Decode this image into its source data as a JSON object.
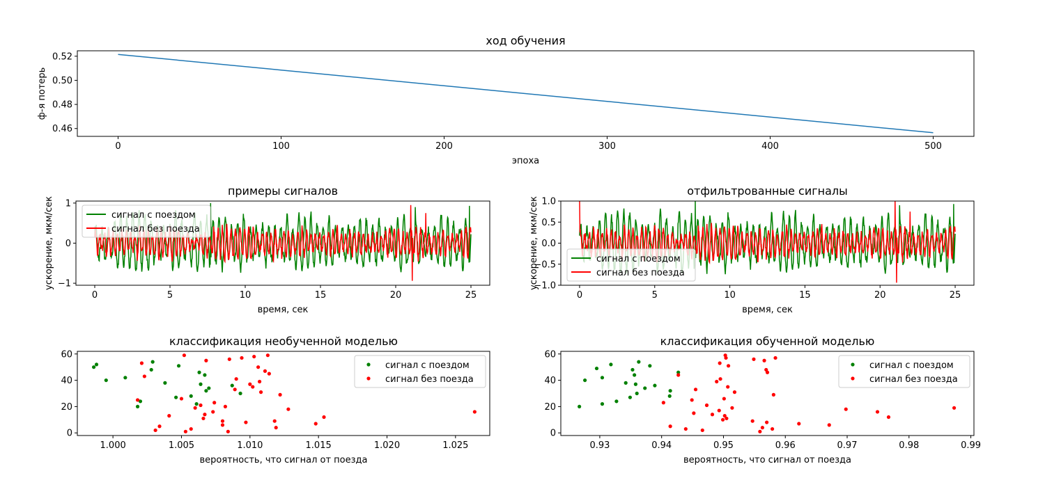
{
  "figure": {
    "background": "#ffffff"
  },
  "chart_data": [
    {
      "id": "training",
      "type": "line",
      "title": "ход обучения",
      "xlabel": "эпоха",
      "ylabel": "ф-я потерь",
      "xlim": [
        -25,
        525
      ],
      "ylim": [
        0.4535,
        0.5245
      ],
      "xticks": [
        0,
        100,
        200,
        300,
        400,
        500
      ],
      "xtick_labels": [
        "0",
        "100",
        "200",
        "300",
        "400",
        "500"
      ],
      "yticks": [
        0.46,
        0.48,
        0.5,
        0.52
      ],
      "ytick_labels": [
        "0.46",
        "0.48",
        "0.50",
        "0.52"
      ],
      "grid": false,
      "series": [
        {
          "color": "#1f77b4",
          "x": [
            0,
            100,
            200,
            300,
            400,
            500
          ],
          "y": [
            0.5215,
            0.5085,
            0.4955,
            0.4825,
            0.4695,
            0.4565
          ]
        }
      ]
    },
    {
      "id": "examples",
      "type": "line",
      "title": "примеры сигналов",
      "xlabel": "время, сек",
      "ylabel": "ускорение, мкм/сек",
      "xlim": [
        -1.25,
        26.25
      ],
      "ylim": [
        -1.05,
        1.05
      ],
      "xticks": [
        0,
        5,
        10,
        15,
        20,
        25
      ],
      "xtick_labels": [
        "0",
        "5",
        "10",
        "15",
        "20",
        "25"
      ],
      "yticks": [
        -1,
        0,
        1
      ],
      "ytick_labels": [
        "−1",
        "0",
        "1"
      ],
      "grid": false,
      "legend_position": "upper-left",
      "series": [
        {
          "name": "сигнал с поездом",
          "color": "#008000",
          "seed": 11,
          "amp": 0.55,
          "period": 0.42,
          "bursts": [
            [
              7.7,
              1.0
            ],
            [
              21.3,
              0.9
            ],
            [
              24.9,
              0.93
            ]
          ]
        },
        {
          "name": "сигнал без поезда",
          "color": "#ff0000",
          "seed": 29,
          "amp": 0.3,
          "period": 0.3,
          "bursts": [
            [
              21.0,
              0.95
            ],
            [
              21.1,
              -0.94
            ],
            [
              22.0,
              0.75
            ]
          ]
        }
      ]
    },
    {
      "id": "filtered",
      "type": "line",
      "title": "отфильтрованные сигналы",
      "xlabel": "время, сек",
      "ylabel": "ускорение, мкм/сек",
      "xlim": [
        -1.25,
        26.25
      ],
      "ylim": [
        -1.0,
        1.0
      ],
      "xticks": [
        0,
        5,
        10,
        15,
        20,
        25
      ],
      "xtick_labels": [
        "0",
        "5",
        "10",
        "15",
        "20",
        "25"
      ],
      "yticks": [
        -1.0,
        -0.5,
        0.0,
        0.5,
        1.0
      ],
      "ytick_labels": [
        "−1.0",
        "−0.5",
        "0.0",
        "0.5",
        "1.0"
      ],
      "grid": false,
      "legend_position": "lower-left",
      "series": [
        {
          "name": "сигнал с поездом",
          "color": "#008000",
          "seed": 11,
          "amp": 0.55,
          "period": 0.42,
          "bursts": [
            [
              7.7,
              1.0
            ],
            [
              21.3,
              0.9
            ],
            [
              24.9,
              0.93
            ]
          ]
        },
        {
          "name": "сигнал без поезда",
          "color": "#ff0000",
          "seed": 29,
          "amp": 0.3,
          "period": 0.3,
          "bursts": [
            [
              0.0,
              1.0
            ],
            [
              21.0,
              1.0
            ],
            [
              21.1,
              -0.94
            ],
            [
              22.0,
              0.75
            ]
          ]
        }
      ]
    },
    {
      "id": "untrained",
      "type": "scatter",
      "title": "классификация необученной моделью",
      "xlabel": "вероятность, что сигнал от поезда",
      "ylabel": "",
      "xlim": [
        0.9974,
        1.0275
      ],
      "ylim": [
        -2,
        62
      ],
      "xticks": [
        1.0,
        1.005,
        1.01,
        1.015,
        1.02,
        1.025
      ],
      "xtick_labels": [
        "1.000",
        "1.005",
        "1.010",
        "1.015",
        "1.020",
        "1.025"
      ],
      "yticks": [
        0,
        20,
        40,
        60
      ],
      "ytick_labels": [
        "0",
        "20",
        "40",
        "60"
      ],
      "grid": false,
      "legend_position": "upper-right",
      "series": [
        {
          "name": "сигнал с поездом",
          "color": "#008000",
          "points": [
            [
              0.9986,
              50
            ],
            [
              0.9988,
              52
            ],
            [
              0.9995,
              40
            ],
            [
              1.0009,
              42
            ],
            [
              1.0018,
              20
            ],
            [
              1.002,
              24
            ],
            [
              1.0028,
              48
            ],
            [
              1.0029,
              54
            ],
            [
              1.0038,
              38
            ],
            [
              1.0046,
              27
            ],
            [
              1.0048,
              51
            ],
            [
              1.0057,
              28
            ],
            [
              1.0061,
              22
            ],
            [
              1.0063,
              46
            ],
            [
              1.0064,
              37
            ],
            [
              1.0067,
              44
            ],
            [
              1.0068,
              32
            ],
            [
              1.007,
              34
            ],
            [
              1.0087,
              36
            ],
            [
              1.0093,
              30
            ]
          ]
        },
        {
          "name": "сигнал без поезда",
          "color": "#ff0000",
          "points": [
            [
              1.0018,
              25
            ],
            [
              1.0021,
              53
            ],
            [
              1.0023,
              43
            ],
            [
              1.0031,
              2
            ],
            [
              1.0034,
              5
            ],
            [
              1.0041,
              13
            ],
            [
              1.005,
              26
            ],
            [
              1.0052,
              59
            ],
            [
              1.0053,
              1
            ],
            [
              1.0057,
              3
            ],
            [
              1.006,
              19
            ],
            [
              1.0064,
              21
            ],
            [
              1.0066,
              11
            ],
            [
              1.0067,
              14
            ],
            [
              1.0068,
              55
            ],
            [
              1.0073,
              16
            ],
            [
              1.0074,
              23
            ],
            [
              1.008,
              9
            ],
            [
              1.008,
              6
            ],
            [
              1.0082,
              20
            ],
            [
              1.0084,
              1
            ],
            [
              1.0085,
              56
            ],
            [
              1.0089,
              33
            ],
            [
              1.009,
              41
            ],
            [
              1.0094,
              57
            ],
            [
              1.0097,
              8
            ],
            [
              1.01,
              37
            ],
            [
              1.0102,
              35
            ],
            [
              1.0103,
              58
            ],
            [
              1.0106,
              50
            ],
            [
              1.0107,
              39
            ],
            [
              1.0108,
              31
            ],
            [
              1.0111,
              47
            ],
            [
              1.0113,
              59
            ],
            [
              1.0114,
              45
            ],
            [
              1.0118,
              9
            ],
            [
              1.0119,
              4
            ],
            [
              1.0122,
              29
            ],
            [
              1.0128,
              18
            ],
            [
              1.0148,
              7
            ],
            [
              1.0154,
              12
            ],
            [
              1.0264,
              16
            ]
          ]
        }
      ]
    },
    {
      "id": "trained",
      "type": "scatter",
      "title": "классификация обученной моделью",
      "xlabel": "вероятность, что сигнал от поезда",
      "ylabel": "",
      "xlim": [
        0.9237,
        0.9905
      ],
      "ylim": [
        -2,
        62
      ],
      "xticks": [
        0.93,
        0.94,
        0.95,
        0.96,
        0.97,
        0.98,
        0.99
      ],
      "xtick_labels": [
        "0.93",
        "0.94",
        "0.95",
        "0.96",
        "0.97",
        "0.98",
        "0.99"
      ],
      "yticks": [
        0,
        20,
        40,
        60
      ],
      "ytick_labels": [
        "0",
        "20",
        "40",
        "60"
      ],
      "grid": false,
      "legend_position": "upper-right",
      "series": [
        {
          "name": "сигнал с поездом",
          "color": "#008000",
          "points": [
            [
              0.9267,
              20
            ],
            [
              0.9276,
              40
            ],
            [
              0.9295,
              49
            ],
            [
              0.9304,
              42
            ],
            [
              0.9304,
              22
            ],
            [
              0.9318,
              52
            ],
            [
              0.9327,
              24
            ],
            [
              0.9342,
              38
            ],
            [
              0.9349,
              27
            ],
            [
              0.9353,
              48
            ],
            [
              0.9356,
              44
            ],
            [
              0.9358,
              37
            ],
            [
              0.936,
              30
            ],
            [
              0.9363,
              54
            ],
            [
              0.9373,
              34
            ],
            [
              0.9381,
              51
            ],
            [
              0.9389,
              36
            ],
            [
              0.9413,
              28
            ],
            [
              0.9414,
              32
            ],
            [
              0.9427,
              46
            ]
          ]
        },
        {
          "name": "сигнал без поезда",
          "color": "#ff0000",
          "points": [
            [
              0.9403,
              23
            ],
            [
              0.9414,
              5
            ],
            [
              0.9427,
              44
            ],
            [
              0.9439,
              3
            ],
            [
              0.9449,
              25
            ],
            [
              0.9452,
              15
            ],
            [
              0.9455,
              33
            ],
            [
              0.9466,
              2
            ],
            [
              0.9473,
              21
            ],
            [
              0.9482,
              14
            ],
            [
              0.9489,
              39
            ],
            [
              0.9493,
              17
            ],
            [
              0.9494,
              53
            ],
            [
              0.9495,
              41
            ],
            [
              0.9499,
              10
            ],
            [
              0.9501,
              26
            ],
            [
              0.9502,
              13
            ],
            [
              0.9503,
              59
            ],
            [
              0.9504,
              57
            ],
            [
              0.9505,
              11
            ],
            [
              0.9507,
              35
            ],
            [
              0.9508,
              51
            ],
            [
              0.9514,
              19
            ],
            [
              0.9518,
              31
            ],
            [
              0.9547,
              9
            ],
            [
              0.9549,
              56
            ],
            [
              0.9559,
              1
            ],
            [
              0.9563,
              4
            ],
            [
              0.9566,
              55
            ],
            [
              0.9569,
              48
            ],
            [
              0.957,
              8
            ],
            [
              0.9571,
              46
            ],
            [
              0.9579,
              3
            ],
            [
              0.9581,
              29
            ],
            [
              0.9584,
              57
            ],
            [
              0.9622,
              7
            ],
            [
              0.9671,
              6
            ],
            [
              0.9698,
              18
            ],
            [
              0.9749,
              16
            ],
            [
              0.9767,
              12
            ],
            [
              0.9873,
              19
            ]
          ]
        }
      ]
    }
  ]
}
